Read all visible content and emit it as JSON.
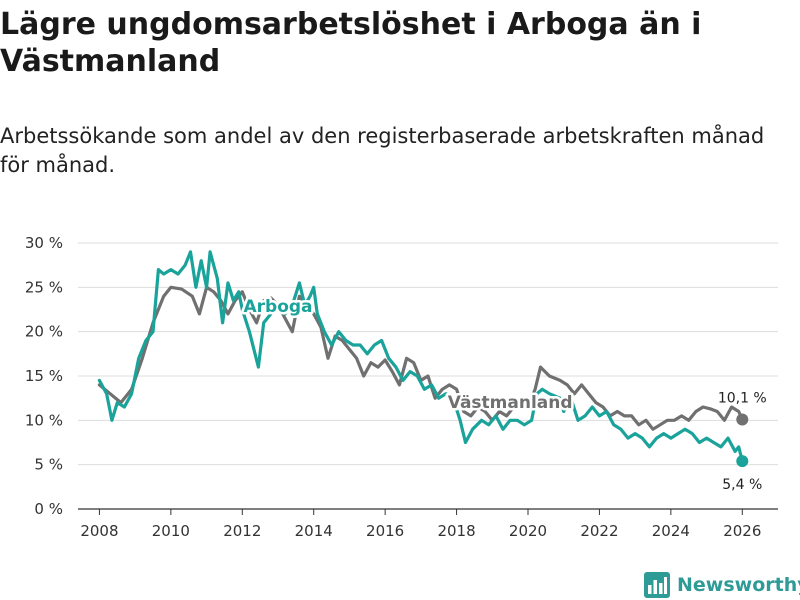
{
  "title": "Lägre ungdomsarbetslöshet i Arboga än i Västmanland",
  "subtitle": "Arbetssökande som andel av den registerbaserade arbetskraften månad för månad.",
  "brand": "Newsworthy",
  "colors": {
    "arboga": "#1aa39a",
    "vastmanland": "#707070",
    "grid": "#dddddd",
    "axis": "#333333",
    "brand": "#2f9b96"
  },
  "chart_data": {
    "type": "line",
    "title": "Lägre ungdomsarbetslöshet i Arboga än i Västmanland",
    "xlabel": "",
    "ylabel": "",
    "xlim": [
      2007.4,
      2027.0
    ],
    "ylim": [
      0,
      30
    ],
    "grid": true,
    "x_ticks": [
      {
        "value": 2008,
        "label": "2008"
      },
      {
        "value": 2010,
        "label": "2010"
      },
      {
        "value": 2012,
        "label": "2012"
      },
      {
        "value": 2014,
        "label": "2014"
      },
      {
        "value": 2016,
        "label": "2016"
      },
      {
        "value": 2018,
        "label": "2018"
      },
      {
        "value": 2020,
        "label": "2020"
      },
      {
        "value": 2022,
        "label": "2022"
      },
      {
        "value": 2024,
        "label": "2024"
      },
      {
        "value": 2026,
        "label": "2026"
      }
    ],
    "y_ticks": [
      {
        "value": 0,
        "label": "0 %"
      },
      {
        "value": 5,
        "label": "5 %"
      },
      {
        "value": 10,
        "label": "10 %"
      },
      {
        "value": 15,
        "label": "15 %"
      },
      {
        "value": 20,
        "label": "20 %"
      },
      {
        "value": 25,
        "label": "25 %"
      },
      {
        "value": 30,
        "label": "30 %"
      }
    ],
    "series": [
      {
        "name": "Västmanland",
        "label": "Västmanland",
        "end_label": "10,1 %",
        "color": "#707070",
        "points": [
          [
            2008.0,
            14.0
          ],
          [
            2008.3,
            13.0
          ],
          [
            2008.6,
            12.0
          ],
          [
            2008.9,
            13.5
          ],
          [
            2009.2,
            17.0
          ],
          [
            2009.5,
            21.0
          ],
          [
            2009.8,
            24.0
          ],
          [
            2010.0,
            25.0
          ],
          [
            2010.3,
            24.8
          ],
          [
            2010.6,
            24.0
          ],
          [
            2010.8,
            22.0
          ],
          [
            2011.0,
            25.0
          ],
          [
            2011.2,
            24.5
          ],
          [
            2011.4,
            23.5
          ],
          [
            2011.6,
            22.0
          ],
          [
            2011.8,
            23.5
          ],
          [
            2012.0,
            24.5
          ],
          [
            2012.2,
            22.5
          ],
          [
            2012.4,
            21.0
          ],
          [
            2012.6,
            23.5
          ],
          [
            2012.8,
            23.8
          ],
          [
            2013.0,
            23.0
          ],
          [
            2013.2,
            21.5
          ],
          [
            2013.4,
            20.0
          ],
          [
            2013.6,
            24.0
          ],
          [
            2013.8,
            23.0
          ],
          [
            2014.0,
            22.0
          ],
          [
            2014.2,
            20.5
          ],
          [
            2014.4,
            17.0
          ],
          [
            2014.6,
            19.5
          ],
          [
            2014.8,
            19.0
          ],
          [
            2015.0,
            18.0
          ],
          [
            2015.2,
            17.0
          ],
          [
            2015.4,
            15.0
          ],
          [
            2015.6,
            16.5
          ],
          [
            2015.8,
            16.0
          ],
          [
            2016.0,
            16.8
          ],
          [
            2016.2,
            15.5
          ],
          [
            2016.4,
            14.0
          ],
          [
            2016.6,
            17.0
          ],
          [
            2016.8,
            16.5
          ],
          [
            2017.0,
            14.5
          ],
          [
            2017.2,
            15.0
          ],
          [
            2017.4,
            12.5
          ],
          [
            2017.6,
            13.5
          ],
          [
            2017.8,
            14.0
          ],
          [
            2018.0,
            13.5
          ],
          [
            2018.2,
            11.0
          ],
          [
            2018.4,
            10.5
          ],
          [
            2018.6,
            11.5
          ],
          [
            2018.8,
            11.0
          ],
          [
            2019.0,
            10.0
          ],
          [
            2019.2,
            11.0
          ],
          [
            2019.4,
            10.5
          ],
          [
            2019.6,
            11.5
          ],
          [
            2019.8,
            12.0
          ],
          [
            2020.0,
            11.5
          ],
          [
            2020.2,
            13.5
          ],
          [
            2020.35,
            16.0
          ],
          [
            2020.6,
            15.0
          ],
          [
            2020.9,
            14.5
          ],
          [
            2021.1,
            14.0
          ],
          [
            2021.3,
            13.0
          ],
          [
            2021.5,
            14.0
          ],
          [
            2021.7,
            13.0
          ],
          [
            2021.9,
            12.0
          ],
          [
            2022.1,
            11.5
          ],
          [
            2022.3,
            10.5
          ],
          [
            2022.5,
            11.0
          ],
          [
            2022.7,
            10.5
          ],
          [
            2022.9,
            10.5
          ],
          [
            2023.1,
            9.5
          ],
          [
            2023.3,
            10.0
          ],
          [
            2023.5,
            9.0
          ],
          [
            2023.7,
            9.5
          ],
          [
            2023.9,
            10.0
          ],
          [
            2024.1,
            10.0
          ],
          [
            2024.3,
            10.5
          ],
          [
            2024.5,
            10.0
          ],
          [
            2024.7,
            11.0
          ],
          [
            2024.9,
            11.5
          ],
          [
            2025.1,
            11.3
          ],
          [
            2025.3,
            11.0
          ],
          [
            2025.5,
            10.0
          ],
          [
            2025.7,
            11.5
          ],
          [
            2025.9,
            11.0
          ],
          [
            2026.0,
            10.1
          ]
        ]
      },
      {
        "name": "Arboga",
        "label": "Arboga",
        "end_label": "5,4 %",
        "color": "#1aa39a",
        "points": [
          [
            2008.0,
            14.5
          ],
          [
            2008.2,
            13.0
          ],
          [
            2008.35,
            10.0
          ],
          [
            2008.5,
            12.0
          ],
          [
            2008.7,
            11.5
          ],
          [
            2008.9,
            13.0
          ],
          [
            2009.1,
            17.0
          ],
          [
            2009.3,
            19.0
          ],
          [
            2009.5,
            20.0
          ],
          [
            2009.65,
            27.0
          ],
          [
            2009.8,
            26.5
          ],
          [
            2010.0,
            27.0
          ],
          [
            2010.2,
            26.5
          ],
          [
            2010.4,
            27.5
          ],
          [
            2010.55,
            29.0
          ],
          [
            2010.7,
            25.0
          ],
          [
            2010.85,
            28.0
          ],
          [
            2011.0,
            25.0
          ],
          [
            2011.1,
            29.0
          ],
          [
            2011.3,
            26.0
          ],
          [
            2011.45,
            21.0
          ],
          [
            2011.6,
            25.5
          ],
          [
            2011.75,
            23.5
          ],
          [
            2011.9,
            24.5
          ],
          [
            2012.0,
            22.5
          ],
          [
            2012.2,
            20.0
          ],
          [
            2012.45,
            16.0
          ],
          [
            2012.6,
            21.0
          ],
          [
            2012.8,
            22.0
          ],
          [
            2013.0,
            23.0
          ],
          [
            2013.2,
            22.0
          ],
          [
            2013.4,
            23.0
          ],
          [
            2013.6,
            25.5
          ],
          [
            2013.75,
            23.0
          ],
          [
            2013.9,
            24.0
          ],
          [
            2014.0,
            25.0
          ],
          [
            2014.1,
            22.0
          ],
          [
            2014.3,
            20.0
          ],
          [
            2014.5,
            18.5
          ],
          [
            2014.7,
            20.0
          ],
          [
            2014.9,
            19.0
          ],
          [
            2015.1,
            18.5
          ],
          [
            2015.3,
            18.5
          ],
          [
            2015.5,
            17.5
          ],
          [
            2015.7,
            18.5
          ],
          [
            2015.9,
            19.0
          ],
          [
            2016.1,
            17.0
          ],
          [
            2016.3,
            16.0
          ],
          [
            2016.5,
            14.5
          ],
          [
            2016.7,
            15.5
          ],
          [
            2016.9,
            15.0
          ],
          [
            2017.1,
            13.5
          ],
          [
            2017.3,
            14.0
          ],
          [
            2017.5,
            12.5
          ],
          [
            2017.7,
            13.0
          ],
          [
            2017.9,
            12.5
          ],
          [
            2018.1,
            10.0
          ],
          [
            2018.25,
            7.5
          ],
          [
            2018.45,
            9.0
          ],
          [
            2018.7,
            10.0
          ],
          [
            2018.9,
            9.5
          ],
          [
            2019.1,
            10.5
          ],
          [
            2019.3,
            9.0
          ],
          [
            2019.5,
            10.0
          ],
          [
            2019.7,
            10.0
          ],
          [
            2019.9,
            9.5
          ],
          [
            2020.1,
            10.0
          ],
          [
            2020.25,
            13.0
          ],
          [
            2020.4,
            13.5
          ],
          [
            2020.6,
            13.0
          ],
          [
            2020.9,
            12.5
          ],
          [
            2021.0,
            11.0
          ],
          [
            2021.2,
            12.5
          ],
          [
            2021.4,
            10.0
          ],
          [
            2021.6,
            10.5
          ],
          [
            2021.8,
            11.5
          ],
          [
            2022.0,
            10.5
          ],
          [
            2022.2,
            11.0
          ],
          [
            2022.4,
            9.5
          ],
          [
            2022.6,
            9.0
          ],
          [
            2022.8,
            8.0
          ],
          [
            2023.0,
            8.5
          ],
          [
            2023.2,
            8.0
          ],
          [
            2023.4,
            7.0
          ],
          [
            2023.6,
            8.0
          ],
          [
            2023.8,
            8.5
          ],
          [
            2024.0,
            8.0
          ],
          [
            2024.2,
            8.5
          ],
          [
            2024.4,
            9.0
          ],
          [
            2024.6,
            8.5
          ],
          [
            2024.8,
            7.5
          ],
          [
            2025.0,
            8.0
          ],
          [
            2025.2,
            7.5
          ],
          [
            2025.4,
            7.0
          ],
          [
            2025.6,
            8.0
          ],
          [
            2025.8,
            6.5
          ],
          [
            2025.9,
            7.0
          ],
          [
            2026.0,
            5.4
          ]
        ]
      }
    ]
  }
}
